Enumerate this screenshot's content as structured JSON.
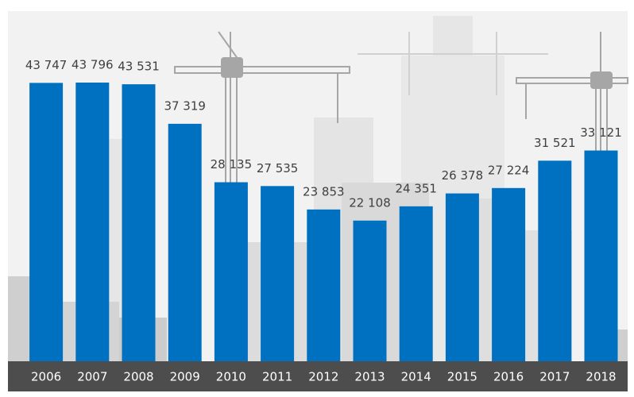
{
  "chart_data": {
    "type": "bar",
    "categories": [
      "2006",
      "2007",
      "2008",
      "2009",
      "2010",
      "2011",
      "2012",
      "2013",
      "2014",
      "2015",
      "2016",
      "2017",
      "2018"
    ],
    "values": [
      43747,
      43796,
      43531,
      37319,
      28135,
      27535,
      23853,
      22108,
      24351,
      26378,
      27224,
      31521,
      33121
    ],
    "value_labels": [
      "43 747",
      "43 796",
      "43 531",
      "37 319",
      "28 135",
      "27 535",
      "23 853",
      "22 108",
      "24 351",
      "26 378",
      "27 224",
      "31 521",
      "33 121"
    ],
    "color": "#0070c0"
  }
}
